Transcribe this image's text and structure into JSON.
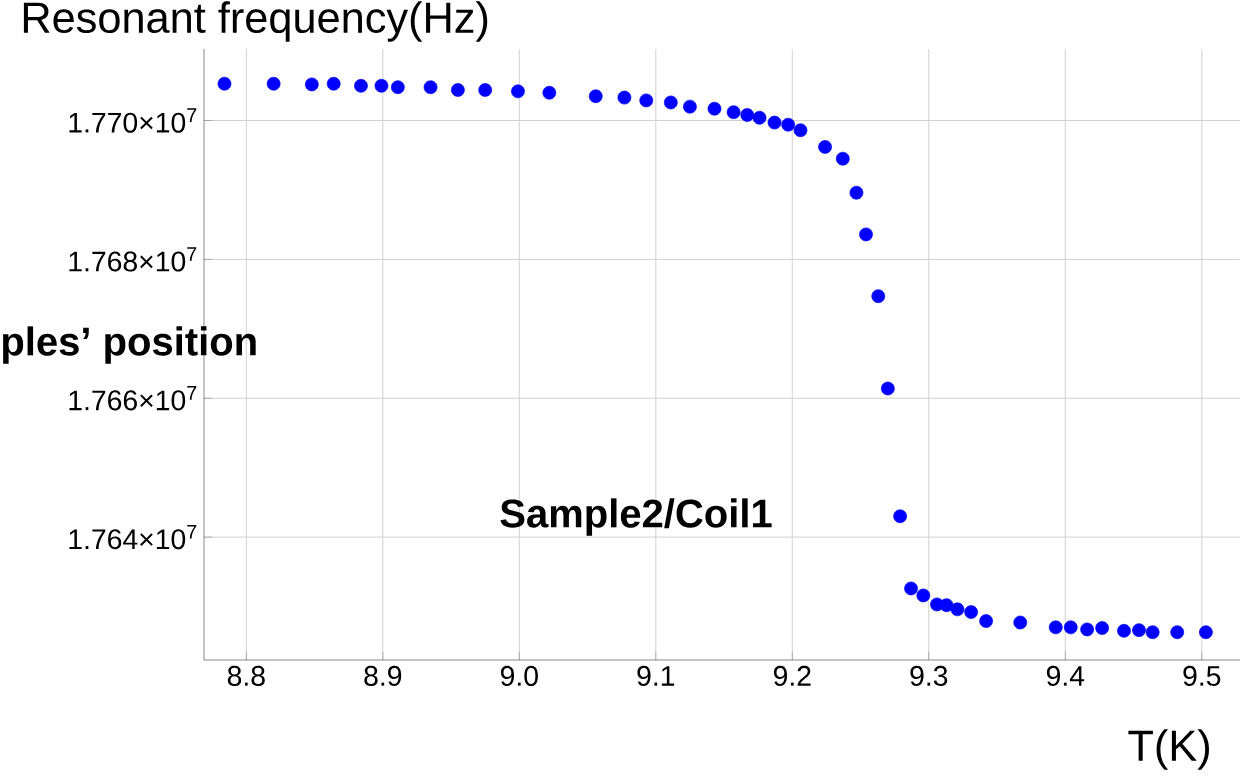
{
  "chart_data": {
    "type": "scatter",
    "ylabel": "Resonant frequency(Hz)",
    "xlabel": "T(K)",
    "annotations": [
      "ples’ position",
      "Sample2/Coil1"
    ],
    "x": [
      8.784,
      8.82,
      8.848,
      8.864,
      8.884,
      8.899,
      8.911,
      8.935,
      8.955,
      8.975,
      8.999,
      9.022,
      9.056,
      9.077,
      9.093,
      9.111,
      9.125,
      9.143,
      9.157,
      9.167,
      9.176,
      9.187,
      9.197,
      9.206,
      9.224,
      9.237,
      9.247,
      9.254,
      9.263,
      9.27,
      9.279,
      9.287,
      9.296,
      9.306,
      9.313,
      9.321,
      9.331,
      9.342,
      9.367,
      9.393,
      9.404,
      9.416,
      9.427,
      9.443,
      9.454,
      9.464,
      9.482,
      9.503
    ],
    "values": [
      17705300,
      17705300,
      17705200,
      17705300,
      17705000,
      17705000,
      17704800,
      17704800,
      17704400,
      17704400,
      17704200,
      17704000,
      17703500,
      17703300,
      17702900,
      17702600,
      17702000,
      17701700,
      17701200,
      17700800,
      17700400,
      17699700,
      17699400,
      17698600,
      17696200,
      17694500,
      17689600,
      17683600,
      17674700,
      17661400,
      17643000,
      17632600,
      17631600,
      17630300,
      17630200,
      17629600,
      17629200,
      17627900,
      17627700,
      17627000,
      17627000,
      17626700,
      17626900,
      17626500,
      17626600,
      17626300,
      17626300,
      17626300
    ],
    "color": "#0000ff",
    "grid": true,
    "xlim": [
      8.769,
      9.528
    ],
    "ylim": [
      17622300,
      17710300
    ],
    "xticks": [
      8.8,
      8.9,
      {
        "value": 9,
        "label": "9.0"
      },
      9.1,
      9.2,
      9.3,
      9.4,
      9.5
    ],
    "yticks": [
      {
        "value": 17640000,
        "label": "1.764×10$^{7}$"
      },
      {
        "value": 17660000,
        "label": "1.766×10$^{7}$"
      },
      {
        "value": 17680000,
        "label": "1.768×10$^{7}$"
      },
      {
        "value": 17700000,
        "label": "1.770×10$^{7}$"
      }
    ]
  }
}
